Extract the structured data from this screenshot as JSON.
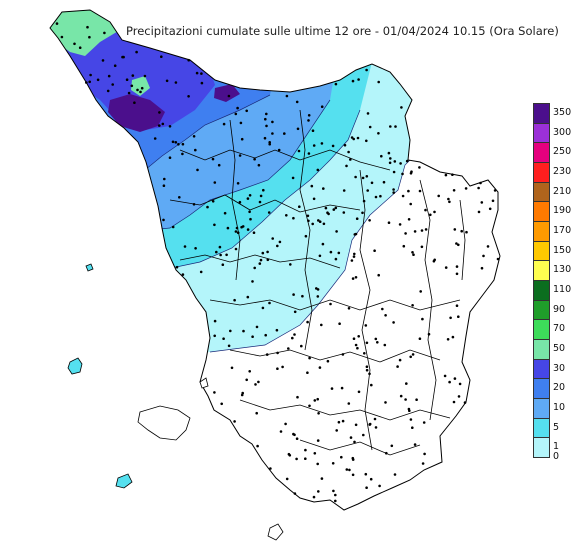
{
  "title": "Precipitazioni cumulate sulle ultime 12 ore - 01/04/2024 10.15 (Ora Solare)",
  "legend": {
    "classes": [
      {
        "label": "350",
        "color": "#4b0f8c"
      },
      {
        "label": "300",
        "color": "#9b30d8"
      },
      {
        "label": "250",
        "color": "#e5007e"
      },
      {
        "label": "230",
        "color": "#ff1f1f"
      },
      {
        "label": "210",
        "color": "#b0641c"
      },
      {
        "label": "190",
        "color": "#ff7a00"
      },
      {
        "label": "170",
        "color": "#ff9a00"
      },
      {
        "label": "150",
        "color": "#ffc800"
      },
      {
        "label": "130",
        "color": "#ffff50"
      },
      {
        "label": "110",
        "color": "#0b6e1f"
      },
      {
        "label": "90",
        "color": "#1f9e2a"
      },
      {
        "label": "70",
        "color": "#3ddc5a"
      },
      {
        "label": "50",
        "color": "#78e6a8"
      },
      {
        "label": "30",
        "color": "#4646e6"
      },
      {
        "label": "20",
        "color": "#3f7ff0"
      },
      {
        "label": "10",
        "color": "#5faaf5"
      },
      {
        "label": "5",
        "color": "#55e0ef"
      },
      {
        "label": "1",
        "color": "#b4f5fa"
      },
      {
        "label": "0",
        "color": "#ffffff"
      }
    ]
  }
}
